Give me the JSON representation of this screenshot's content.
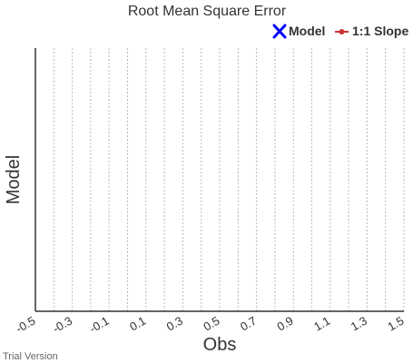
{
  "chart_data": {
    "type": "scatter",
    "title": "Root Mean Square Error",
    "xlabel": "Obs",
    "ylabel": "Model",
    "xlim": [
      -0.5,
      1.5
    ],
    "x_ticks": [
      -0.5,
      -0.3,
      -0.1,
      0.1,
      0.3,
      0.5,
      0.7,
      0.9,
      1.1,
      1.3,
      1.5
    ],
    "x_tick_labels": [
      "-0.5",
      "-0.3",
      "-0.1",
      "0.1",
      "0.3",
      "0.5",
      "0.7",
      "0.9",
      "1.1",
      "1.3",
      "1.5"
    ],
    "x_grid_step": 0.1,
    "grid": "vertical dotted",
    "legend_position": "top-right",
    "series": [
      {
        "name": "Model",
        "marker": "cross",
        "color": "#0000ff",
        "values": []
      },
      {
        "name": "1:1 Slope",
        "marker": "line-dot",
        "color": "#cc3333",
        "values": []
      }
    ]
  },
  "credit": "Trial Version"
}
